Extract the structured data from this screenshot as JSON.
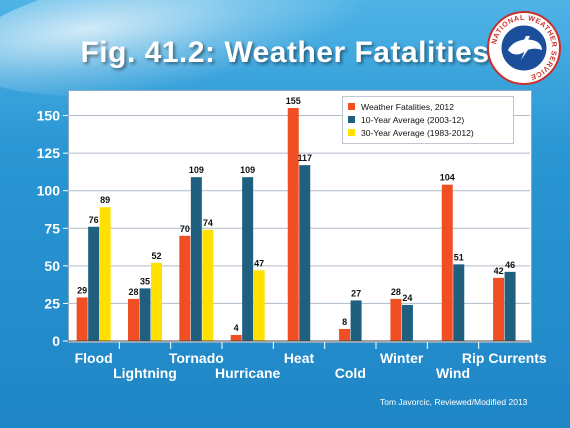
{
  "slide": {
    "title": "Fig. 41.2:  Weather Fatalities",
    "credit": "Tom Javorcic, Reviewed/Modified 2013",
    "seal_text": "NATIONAL WEATHER SERVICE"
  },
  "chart_data": {
    "type": "bar",
    "categories": [
      "Flood",
      "Lightning",
      "Tornado",
      "Hurricane",
      "Heat",
      "Cold",
      "Winter",
      "Wind",
      "Rip Currents"
    ],
    "series": [
      {
        "name": "Weather Fatalities, 2012",
        "color": "#f04e23",
        "values": [
          29,
          28,
          70,
          4,
          155,
          8,
          28,
          104,
          42
        ]
      },
      {
        "name": "10-Year Average (2003-12)",
        "color": "#1f5f7f",
        "values": [
          76,
          35,
          109,
          109,
          117,
          27,
          24,
          51,
          46
        ]
      },
      {
        "name": "30-Year Average (1983-2012)",
        "color": "#ffe000",
        "values": [
          89,
          52,
          74,
          47,
          null,
          null,
          null,
          null,
          null
        ]
      }
    ],
    "yticks": [
      0,
      25,
      50,
      75,
      100,
      125,
      150
    ],
    "ylim": [
      0,
      167
    ],
    "grid": true,
    "legend": "top-right"
  }
}
